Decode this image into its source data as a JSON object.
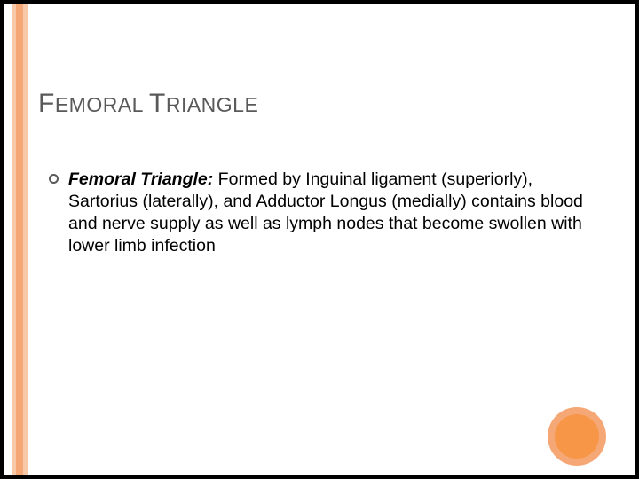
{
  "slide": {
    "title_html": "FEMORAL TRIANGLE",
    "bullet": {
      "lead": "Femoral Triangle:",
      "rest": "  Formed by Inguinal ligament (superiorly), Sartorius (laterally), and Adductor Longus (medially) contains blood and nerve supply as well as lymph nodes that become swollen with lower limb infection"
    }
  },
  "style": {
    "background": "#000000",
    "slide_background": "#ffffff",
    "stripe_outer_color": "#f8c9a8",
    "stripe_inner_color": "#f5a876",
    "circle_outer_color": "#f5a876",
    "circle_inner_color": "#f79646",
    "title_color": "#595959",
    "title_fontsize_big": 30,
    "title_fontsize_small": 23,
    "body_fontsize": 19.5,
    "bullet_marker_border": "#595959"
  }
}
